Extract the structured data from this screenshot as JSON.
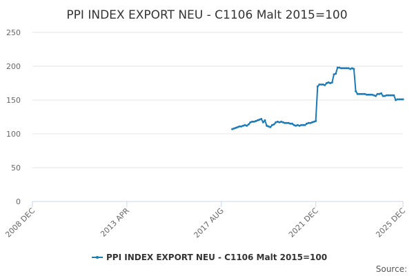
{
  "chart_data": {
    "type": "line",
    "title": "PPI INDEX EXPORT NEU - C1106 Malt 2015=100",
    "xlabel": "",
    "ylabel": "",
    "ylim": [
      0,
      250
    ],
    "yticks": [
      "0",
      "50",
      "100",
      "150",
      "200",
      "250"
    ],
    "xlim": [
      "2008-12",
      "2025-12"
    ],
    "xticks": [
      "2008 DEC",
      "2013 APR",
      "2017 AUG",
      "2021 DEC",
      "2025 DEC"
    ],
    "grid": true,
    "legend": "bottom-center",
    "credit": "Source:",
    "colors": {
      "series": "#1a7ab8",
      "grid": "#e6e6e6",
      "axis": "#ccd6eb"
    },
    "series": [
      {
        "name": "PPI INDEX EXPORT NEU - C1106 Malt 2015=100",
        "points": [
          [
            "2018-02",
            107
          ],
          [
            "2018-03",
            108
          ],
          [
            "2018-04",
            109
          ],
          [
            "2018-05",
            110
          ],
          [
            "2018-06",
            111
          ],
          [
            "2018-07",
            111
          ],
          [
            "2018-08",
            112
          ],
          [
            "2018-09",
            113
          ],
          [
            "2018-10",
            112
          ],
          [
            "2018-11",
            114
          ],
          [
            "2018-12",
            117
          ],
          [
            "2019-01",
            118
          ],
          [
            "2019-02",
            118
          ],
          [
            "2019-03",
            119
          ],
          [
            "2019-04",
            120
          ],
          [
            "2019-05",
            121
          ],
          [
            "2019-06",
            122
          ],
          [
            "2019-07",
            117
          ],
          [
            "2019-08",
            120
          ],
          [
            "2019-09",
            112
          ],
          [
            "2019-10",
            111
          ],
          [
            "2019-11",
            110
          ],
          [
            "2019-12",
            113
          ],
          [
            "2020-01",
            114
          ],
          [
            "2020-02",
            117
          ],
          [
            "2020-03",
            118
          ],
          [
            "2020-04",
            117
          ],
          [
            "2020-05",
            118
          ],
          [
            "2020-06",
            117
          ],
          [
            "2020-07",
            116
          ],
          [
            "2020-08",
            116
          ],
          [
            "2020-09",
            116
          ],
          [
            "2020-10",
            115
          ],
          [
            "2020-11",
            115
          ],
          [
            "2020-12",
            113
          ],
          [
            "2021-01",
            112
          ],
          [
            "2021-02",
            113
          ],
          [
            "2021-03",
            112
          ],
          [
            "2021-04",
            113
          ],
          [
            "2021-05",
            113
          ],
          [
            "2021-06",
            113
          ],
          [
            "2021-07",
            115
          ],
          [
            "2021-08",
            116
          ],
          [
            "2021-09",
            116
          ],
          [
            "2021-10",
            117
          ],
          [
            "2021-11",
            118
          ],
          [
            "2021-12",
            119
          ],
          [
            "2022-01",
            170
          ],
          [
            "2022-02",
            173
          ],
          [
            "2022-03",
            173
          ],
          [
            "2022-04",
            173
          ],
          [
            "2022-05",
            172
          ],
          [
            "2022-06",
            175
          ],
          [
            "2022-07",
            176
          ],
          [
            "2022-08",
            175
          ],
          [
            "2022-09",
            176
          ],
          [
            "2022-10",
            188
          ],
          [
            "2022-11",
            189
          ],
          [
            "2022-12",
            198
          ],
          [
            "2023-01",
            198
          ],
          [
            "2023-02",
            197
          ],
          [
            "2023-03",
            197
          ],
          [
            "2023-04",
            197
          ],
          [
            "2023-05",
            197
          ],
          [
            "2023-06",
            197
          ],
          [
            "2023-07",
            196
          ],
          [
            "2023-08",
            197
          ],
          [
            "2023-09",
            196
          ],
          [
            "2023-10",
            163
          ],
          [
            "2023-11",
            159
          ],
          [
            "2023-12",
            159
          ],
          [
            "2024-01",
            159
          ],
          [
            "2024-02",
            159
          ],
          [
            "2024-03",
            159
          ],
          [
            "2024-04",
            158
          ],
          [
            "2024-05",
            158
          ],
          [
            "2024-06",
            158
          ],
          [
            "2024-07",
            158
          ],
          [
            "2024-08",
            157
          ],
          [
            "2024-09",
            156
          ],
          [
            "2024-10",
            159
          ],
          [
            "2024-11",
            159
          ],
          [
            "2024-12",
            160
          ],
          [
            "2025-01",
            156
          ],
          [
            "2025-02",
            156
          ],
          [
            "2025-03",
            157
          ],
          [
            "2025-04",
            157
          ],
          [
            "2025-05",
            157
          ],
          [
            "2025-06",
            157
          ],
          [
            "2025-07",
            157
          ],
          [
            "2025-08",
            150
          ],
          [
            "2025-09",
            151
          ],
          [
            "2025-10",
            151
          ],
          [
            "2025-11",
            151
          ],
          [
            "2025-12",
            151
          ]
        ]
      }
    ]
  }
}
